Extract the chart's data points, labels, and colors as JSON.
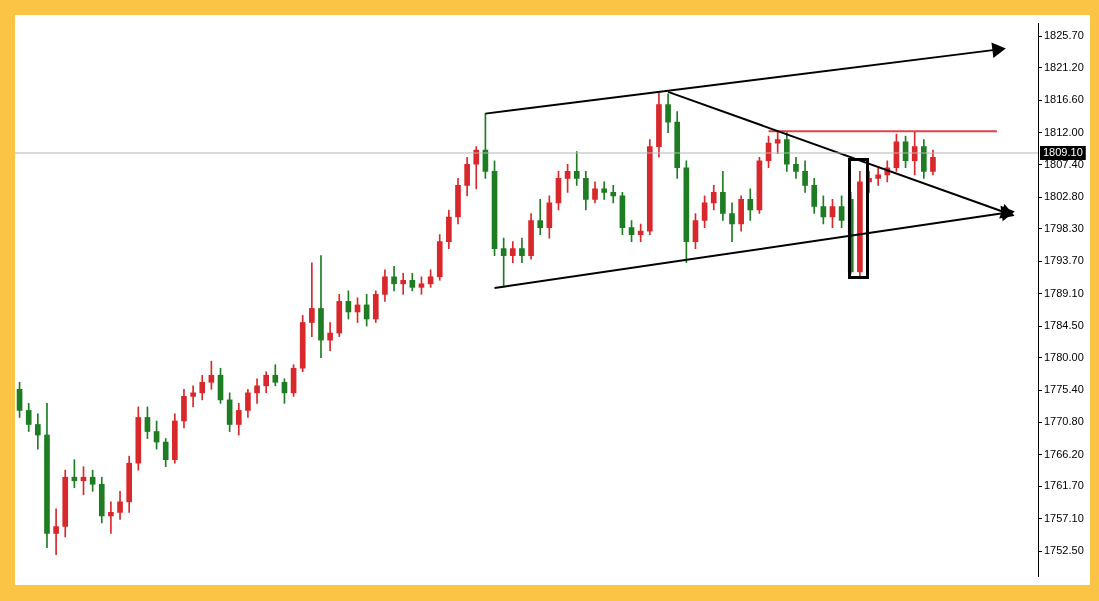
{
  "chart_data": {
    "type": "candlestick",
    "categories": [
      null,
      null,
      null,
      null,
      null,
      null,
      null,
      null,
      null,
      null,
      null,
      null,
      null,
      null,
      null,
      null,
      null,
      null,
      null,
      null,
      null,
      null,
      null,
      null,
      null,
      null,
      null,
      null,
      null,
      null,
      null,
      null,
      null,
      null,
      null,
      null,
      null,
      null,
      null,
      null,
      null,
      null,
      null,
      null,
      null,
      null,
      null,
      null,
      null,
      null,
      null,
      null,
      null,
      null,
      null,
      null,
      null,
      null,
      null,
      null,
      null,
      null,
      null,
      null,
      null,
      null,
      null,
      null,
      null,
      null,
      null,
      null,
      null,
      null,
      null,
      null,
      null,
      null,
      null,
      null,
      null,
      null,
      null,
      null,
      null,
      null,
      null,
      null,
      null,
      null,
      null,
      null,
      null,
      null,
      null,
      null,
      null,
      null,
      null,
      null,
      null,
      null,
      null,
      null,
      null,
      null,
      null,
      null,
      null,
      null,
      null,
      null
    ],
    "ohlc": [
      [
        1775.5,
        1776.5,
        1771.5,
        1772.5
      ],
      [
        1772.5,
        1773.5,
        1769.5,
        1770.5
      ],
      [
        1770.5,
        1772.0,
        1767.0,
        1769.0
      ],
      [
        1769.0,
        1773.5,
        1753.0,
        1755.0
      ],
      [
        1755.0,
        1758.5,
        1752.0,
        1756.0
      ],
      [
        1756.0,
        1764.0,
        1754.5,
        1763.0
      ],
      [
        1763.0,
        1765.5,
        1761.5,
        1762.5
      ],
      [
        1762.5,
        1764.5,
        1760.5,
        1763.0
      ],
      [
        1763.0,
        1764.0,
        1761.0,
        1762.0
      ],
      [
        1762.0,
        1763.0,
        1756.5,
        1757.5
      ],
      [
        1757.5,
        1759.5,
        1755.0,
        1758.0
      ],
      [
        1758.0,
        1761.0,
        1757.0,
        1759.5
      ],
      [
        1759.5,
        1766.0,
        1758.0,
        1765.0
      ],
      [
        1765.0,
        1773.0,
        1764.0,
        1771.5
      ],
      [
        1771.5,
        1773.0,
        1768.5,
        1769.5
      ],
      [
        1769.5,
        1771.0,
        1767.0,
        1768.0
      ],
      [
        1768.0,
        1768.5,
        1764.5,
        1765.5
      ],
      [
        1765.5,
        1772.0,
        1765.0,
        1771.0
      ],
      [
        1771.0,
        1775.5,
        1770.0,
        1774.5
      ],
      [
        1774.5,
        1776.0,
        1773.0,
        1775.0
      ],
      [
        1775.0,
        1777.5,
        1774.0,
        1776.5
      ],
      [
        1776.5,
        1779.5,
        1775.5,
        1777.5
      ],
      [
        1777.5,
        1778.5,
        1773.5,
        1774.0
      ],
      [
        1774.0,
        1775.0,
        1769.5,
        1770.5
      ],
      [
        1770.5,
        1773.5,
        1769.0,
        1772.5
      ],
      [
        1772.5,
        1775.5,
        1771.5,
        1775.0
      ],
      [
        1775.0,
        1777.0,
        1773.5,
        1776.0
      ],
      [
        1776.0,
        1778.0,
        1775.0,
        1777.5
      ],
      [
        1777.5,
        1779.0,
        1776.0,
        1776.5
      ],
      [
        1776.5,
        1777.0,
        1773.5,
        1775.0
      ],
      [
        1775.0,
        1779.0,
        1774.5,
        1778.5
      ],
      [
        1778.5,
        1786.0,
        1778.0,
        1785.0
      ],
      [
        1785.0,
        1793.5,
        1783.0,
        1787.0
      ],
      [
        1787.0,
        1794.5,
        1780.0,
        1782.5
      ],
      [
        1782.5,
        1785.0,
        1781.0,
        1783.5
      ],
      [
        1783.5,
        1789.0,
        1783.0,
        1788.0
      ],
      [
        1788.0,
        1789.5,
        1785.5,
        1786.5
      ],
      [
        1786.5,
        1788.5,
        1785.0,
        1787.5
      ],
      [
        1787.5,
        1789.0,
        1784.5,
        1785.5
      ],
      [
        1785.5,
        1789.5,
        1785.0,
        1789.0
      ],
      [
        1789.0,
        1792.5,
        1788.0,
        1791.5
      ],
      [
        1791.5,
        1793.0,
        1789.5,
        1790.5
      ],
      [
        1790.5,
        1792.0,
        1789.0,
        1791.0
      ],
      [
        1791.0,
        1792.0,
        1789.5,
        1790.0
      ],
      [
        1790.0,
        1791.5,
        1789.0,
        1790.5
      ],
      [
        1790.5,
        1792.5,
        1790.0,
        1791.5
      ],
      [
        1791.5,
        1797.5,
        1791.0,
        1796.5
      ],
      [
        1796.5,
        1801.0,
        1795.5,
        1800.0
      ],
      [
        1800.0,
        1805.5,
        1799.0,
        1804.5
      ],
      [
        1804.5,
        1808.5,
        1803.0,
        1807.5
      ],
      [
        1807.5,
        1810.0,
        1804.0,
        1809.5
      ],
      [
        1809.5,
        1814.7,
        1805.5,
        1806.5
      ],
      [
        1806.5,
        1808.0,
        1794.5,
        1795.5
      ],
      [
        1795.5,
        1797.0,
        1790.0,
        1794.5
      ],
      [
        1794.5,
        1796.5,
        1793.5,
        1795.5
      ],
      [
        1795.5,
        1797.0,
        1793.5,
        1794.5
      ],
      [
        1794.5,
        1800.5,
        1794.0,
        1799.5
      ],
      [
        1799.5,
        1802.5,
        1797.5,
        1798.5
      ],
      [
        1798.5,
        1803.0,
        1797.0,
        1802.0
      ],
      [
        1802.0,
        1806.5,
        1801.0,
        1805.5
      ],
      [
        1805.5,
        1807.5,
        1803.5,
        1806.5
      ],
      [
        1806.5,
        1809.3,
        1804.5,
        1805.5
      ],
      [
        1805.5,
        1806.5,
        1801.0,
        1802.5
      ],
      [
        1802.5,
        1805.0,
        1802.0,
        1804.0
      ],
      [
        1804.0,
        1805.0,
        1802.5,
        1803.5
      ],
      [
        1803.5,
        1804.5,
        1802.0,
        1803.0
      ],
      [
        1803.0,
        1803.5,
        1797.5,
        1798.5
      ],
      [
        1798.5,
        1799.5,
        1796.5,
        1797.5
      ],
      [
        1797.5,
        1799.0,
        1796.5,
        1798.0
      ],
      [
        1798.0,
        1811.0,
        1797.5,
        1810.0
      ],
      [
        1810.0,
        1817.6,
        1808.5,
        1816.0
      ],
      [
        1816.0,
        1817.5,
        1812.0,
        1813.5
      ],
      [
        1813.5,
        1815.0,
        1805.5,
        1807.0
      ],
      [
        1807.0,
        1808.0,
        1793.5,
        1796.5
      ],
      [
        1796.5,
        1800.5,
        1795.5,
        1799.5
      ],
      [
        1799.5,
        1803.0,
        1798.5,
        1802.0
      ],
      [
        1802.0,
        1804.5,
        1801.0,
        1803.5
      ],
      [
        1803.5,
        1806.5,
        1799.5,
        1800.5
      ],
      [
        1800.5,
        1802.0,
        1796.5,
        1799.0
      ],
      [
        1799.0,
        1803.0,
        1798.0,
        1802.5
      ],
      [
        1802.5,
        1804.0,
        1799.5,
        1801.0
      ],
      [
        1801.0,
        1808.5,
        1800.5,
        1808.0
      ],
      [
        1808.0,
        1811.5,
        1807.0,
        1810.5
      ],
      [
        1810.5,
        1812.1,
        1809.0,
        1811.0
      ],
      [
        1811.0,
        1812.0,
        1806.5,
        1807.5
      ],
      [
        1807.5,
        1808.5,
        1805.5,
        1806.5
      ],
      [
        1806.5,
        1808.0,
        1803.5,
        1804.5
      ],
      [
        1804.5,
        1805.5,
        1800.5,
        1801.5
      ],
      [
        1801.5,
        1803.0,
        1799.0,
        1800.0
      ],
      [
        1800.0,
        1802.5,
        1798.5,
        1801.5
      ],
      [
        1801.5,
        1803.0,
        1798.5,
        1799.5
      ],
      [
        1802.5,
        1803.5,
        1791.9,
        1792.2
      ],
      [
        1792.2,
        1806.5,
        1791.5,
        1805.0
      ],
      [
        1805.0,
        1806.5,
        1803.5,
        1805.5
      ],
      [
        1805.5,
        1807.0,
        1804.5,
        1806.0
      ],
      [
        1806.0,
        1808.0,
        1805.0,
        1807.0
      ],
      [
        1807.0,
        1811.8,
        1806.5,
        1810.7
      ],
      [
        1810.7,
        1811.5,
        1807.0,
        1808.0
      ],
      [
        1808.0,
        1812.1,
        1806.0,
        1810.0
      ],
      [
        1810.0,
        1811.0,
        1805.5,
        1806.5
      ],
      [
        1806.5,
        1809.5,
        1806.0,
        1808.5
      ],
      null,
      null,
      null,
      null,
      null,
      null,
      null,
      null,
      null,
      null,
      null
    ],
    "colors": [
      "#1e7d22",
      "#1e7d22",
      "#1e7d22",
      "#1e7d22",
      "#d8282c",
      "#d8282c",
      "#1e7d22",
      "#d8282c",
      "#1e7d22",
      "#1e7d22",
      "#d8282c",
      "#d8282c",
      "#d8282c",
      "#d8282c",
      "#1e7d22",
      "#1e7d22",
      "#1e7d22",
      "#d8282c",
      "#d8282c",
      "#d8282c",
      "#d8282c",
      "#d8282c",
      "#1e7d22",
      "#1e7d22",
      "#d8282c",
      "#d8282c",
      "#d8282c",
      "#d8282c",
      "#1e7d22",
      "#1e7d22",
      "#d8282c",
      "#d8282c",
      "#d8282c",
      "#1e7d22",
      "#d8282c",
      "#d8282c",
      "#1e7d22",
      "#d8282c",
      "#1e7d22",
      "#d8282c",
      "#d8282c",
      "#1e7d22",
      "#d8282c",
      "#1e7d22",
      "#d8282c",
      "#d8282c",
      "#d8282c",
      "#d8282c",
      "#d8282c",
      "#d8282c",
      "#d8282c",
      "#1e7d22",
      "#1e7d22",
      "#1e7d22",
      "#d8282c",
      "#1e7d22",
      "#d8282c",
      "#1e7d22",
      "#d8282c",
      "#d8282c",
      "#d8282c",
      "#1e7d22",
      "#1e7d22",
      "#d8282c",
      "#1e7d22",
      "#1e7d22",
      "#1e7d22",
      "#1e7d22",
      "#d8282c",
      "#d8282c",
      "#d8282c",
      "#1e7d22",
      "#1e7d22",
      "#1e7d22",
      "#d8282c",
      "#d8282c",
      "#d8282c",
      "#1e7d22",
      "#1e7d22",
      "#d8282c",
      "#1e7d22",
      "#d8282c",
      "#d8282c",
      "#d8282c",
      "#1e7d22",
      "#1e7d22",
      "#1e7d22",
      "#1e7d22",
      "#1e7d22",
      "#d8282c",
      "#1e7d22",
      "#1e7d22",
      "#d8282c",
      "#d8282c",
      "#d8282c",
      "#d8282c",
      "#d8282c",
      "#1e7d22",
      "#d8282c",
      "#1e7d22",
      "#d8282c",
      null,
      null,
      null,
      null,
      null,
      null,
      null,
      null,
      null,
      null,
      null
    ],
    "series": [
      {
        "type": "line",
        "color": "#000000",
        "marker": "triangle",
        "values": [
          null,
          null,
          null,
          null,
          null,
          null,
          null,
          null,
          null,
          null,
          null,
          null,
          null,
          null,
          null,
          null,
          null,
          null,
          null,
          null,
          null,
          null,
          null,
          null,
          null,
          null,
          null,
          null,
          null,
          null,
          null,
          null,
          null,
          null,
          null,
          null,
          null,
          null,
          null,
          null,
          null,
          null,
          null,
          null,
          null,
          null,
          null,
          null,
          null,
          null,
          null,
          1814.7,
          null,
          null,
          null,
          null,
          null,
          null,
          null,
          null,
          null,
          null,
          null,
          null,
          null,
          null,
          null,
          null,
          null,
          null,
          null,
          null,
          null,
          null,
          null,
          null,
          null,
          null,
          null,
          null,
          null,
          null,
          null,
          null,
          null,
          null,
          null,
          null,
          null,
          null,
          null,
          null,
          null,
          null,
          null,
          null,
          null,
          null,
          null,
          null,
          null,
          null,
          null,
          null,
          null,
          null,
          null,
          1823.8,
          null,
          null,
          null,
          null
        ]
      },
      {
        "type": "line",
        "color": "#000000",
        "marker": "triangle",
        "values": [
          null,
          null,
          null,
          null,
          null,
          null,
          null,
          null,
          null,
          null,
          null,
          null,
          null,
          null,
          null,
          null,
          null,
          null,
          null,
          null,
          null,
          null,
          null,
          null,
          null,
          null,
          null,
          null,
          null,
          null,
          null,
          null,
          null,
          null,
          null,
          null,
          null,
          null,
          null,
          null,
          null,
          null,
          null,
          null,
          null,
          null,
          null,
          null,
          null,
          null,
          null,
          null,
          1789.9,
          null,
          null,
          null,
          null,
          null,
          null,
          null,
          null,
          null,
          null,
          null,
          null,
          null,
          null,
          null,
          null,
          null,
          null,
          null,
          null,
          null,
          null,
          null,
          null,
          null,
          null,
          null,
          null,
          null,
          null,
          null,
          null,
          null,
          null,
          null,
          null,
          null,
          null,
          null,
          null,
          null,
          null,
          null,
          null,
          null,
          null,
          null,
          null,
          null,
          null,
          null,
          null,
          null,
          null,
          null,
          1800.6,
          null,
          null,
          null
        ]
      },
      {
        "type": "line",
        "color": "#000000",
        "marker": "triangle",
        "values": [
          null,
          null,
          null,
          null,
          null,
          null,
          null,
          null,
          null,
          null,
          null,
          null,
          null,
          null,
          null,
          null,
          null,
          null,
          null,
          null,
          null,
          null,
          null,
          null,
          null,
          null,
          null,
          null,
          null,
          null,
          null,
          null,
          null,
          null,
          null,
          null,
          null,
          null,
          null,
          null,
          null,
          null,
          null,
          null,
          null,
          null,
          null,
          null,
          null,
          null,
          null,
          null,
          null,
          null,
          null,
          null,
          null,
          null,
          null,
          null,
          null,
          null,
          null,
          null,
          null,
          null,
          null,
          null,
          null,
          null,
          null,
          1817.8,
          null,
          null,
          null,
          null,
          null,
          null,
          null,
          null,
          null,
          null,
          null,
          null,
          null,
          null,
          null,
          null,
          null,
          null,
          null,
          null,
          null,
          null,
          null,
          null,
          null,
          null,
          null,
          null,
          null,
          null,
          null,
          null,
          null,
          null,
          null,
          null,
          1800.6,
          null,
          null,
          null
        ]
      },
      {
        "type": "line",
        "color": "#e0404a",
        "values": [
          null,
          null,
          null,
          null,
          null,
          null,
          null,
          null,
          null,
          null,
          null,
          null,
          null,
          null,
          null,
          null,
          null,
          null,
          null,
          null,
          null,
          null,
          null,
          null,
          null,
          null,
          null,
          null,
          null,
          null,
          null,
          null,
          null,
          null,
          null,
          null,
          null,
          null,
          null,
          null,
          null,
          null,
          null,
          null,
          null,
          null,
          null,
          null,
          null,
          null,
          null,
          null,
          null,
          null,
          null,
          null,
          null,
          null,
          null,
          null,
          null,
          null,
          null,
          null,
          null,
          null,
          null,
          null,
          null,
          null,
          null,
          null,
          null,
          null,
          null,
          null,
          null,
          null,
          null,
          null,
          null,
          null,
          1812.2,
          null,
          null,
          null,
          null,
          null,
          null,
          null,
          null,
          null,
          null,
          null,
          null,
          null,
          null,
          null,
          null,
          null,
          null,
          null,
          null,
          null,
          null,
          null,
          null,
          1812.2,
          null,
          null,
          null,
          null
        ]
      }
    ],
    "ylim": [
      1748.9,
      1827.5
    ],
    "yticks": [
      {
        "value": 1752.5,
        "label": "1752.50"
      },
      {
        "value": 1757.1,
        "label": "1757.10"
      },
      {
        "value": 1761.7,
        "label": "1761.70"
      },
      {
        "value": 1766.2,
        "label": "1766.20"
      },
      {
        "value": 1770.8,
        "label": "1770.80"
      },
      {
        "value": 1775.4,
        "label": "1775.40"
      },
      {
        "value": 1780.0,
        "label": "1780.00"
      },
      {
        "value": 1784.5,
        "label": "1784.50"
      },
      {
        "value": 1789.1,
        "label": "1789.10"
      },
      {
        "value": 1793.7,
        "label": "1793.70"
      },
      {
        "value": 1798.3,
        "label": "1798.30"
      },
      {
        "value": 1802.8,
        "label": "1802.80"
      },
      {
        "value": 1807.4,
        "label": "1807.40"
      },
      {
        "value": 1812.0,
        "label": "1812.00"
      },
      {
        "value": 1816.6,
        "label": "1816.60"
      },
      {
        "value": 1821.2,
        "label": "1821.20"
      },
      {
        "value": 1825.7,
        "label": "1825.70"
      }
    ],
    "ref_lines": [
      {
        "axis": "y",
        "value": 1809.1,
        "label": "1809.10",
        "color": "#b4b4b4"
      }
    ],
    "tick_labels": "y"
  }
}
